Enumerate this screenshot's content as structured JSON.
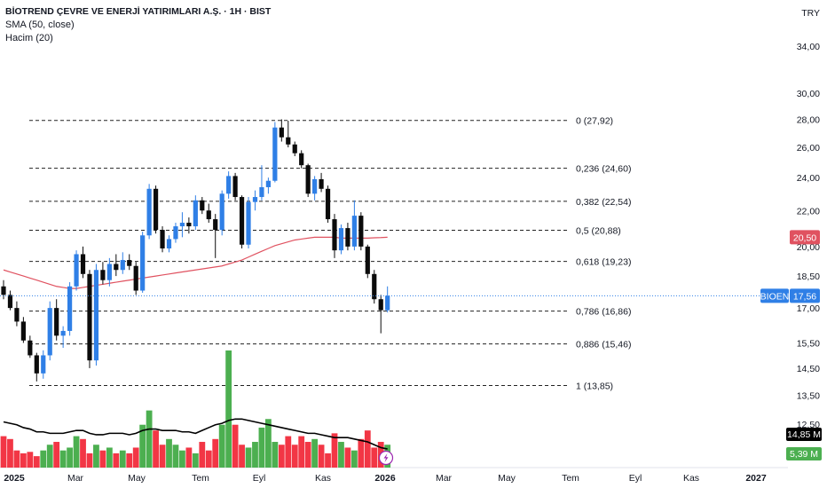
{
  "legend": {
    "title": "BİOTREND ÇEVRE VE ENERJİ YATIRIMLARI A.Ş. · 1H · BIST",
    "sma": "SMA (50, close)",
    "volume": "Hacim (20)"
  },
  "currency": "TRY",
  "colors": {
    "up": "#2f7fe6",
    "down": "#0b0b0b",
    "vol_up": "#4caf50",
    "vol_down": "#f23645",
    "sma": "#e05260",
    "vol_ma": "#000000",
    "last_price": "#2f7fe6"
  },
  "chart_data": {
    "type": "candlestick",
    "y_ticks": [
      "34,00",
      "30,00",
      "28,00",
      "26,00",
      "24,00",
      "22,00",
      "20,00",
      "18,50",
      "17,00",
      "15,50",
      "14,50",
      "13,50",
      "12,50"
    ],
    "x_ticks": [
      "2025",
      "Mar",
      "May",
      "Tem",
      "Eyl",
      "Kas",
      "2026",
      "Mar",
      "May",
      "Tem",
      "Eyl",
      "Kas",
      "2027"
    ],
    "fib_levels": [
      {
        "label": "0 (27,92)",
        "value": 27.92
      },
      {
        "label": "0,236 (24,60)",
        "value": 24.6
      },
      {
        "label": "0,382 (22,54)",
        "value": 22.54
      },
      {
        "label": "0,5 (20,88)",
        "value": 20.88
      },
      {
        "label": "0,618 (19,23)",
        "value": 19.23
      },
      {
        "label": "0,786 (16,86)",
        "value": 16.86
      },
      {
        "label": "0,886 (15,46)",
        "value": 15.46
      },
      {
        "label": "1 (13,85)",
        "value": 13.85
      }
    ],
    "candles": [
      {
        "o": 18.0,
        "h": 18.3,
        "l": 17.4,
        "c": 17.6
      },
      {
        "o": 17.6,
        "h": 17.8,
        "l": 16.9,
        "c": 17.0
      },
      {
        "o": 17.0,
        "h": 17.3,
        "l": 16.2,
        "c": 16.4
      },
      {
        "o": 16.4,
        "h": 16.6,
        "l": 15.5,
        "c": 15.6
      },
      {
        "o": 15.6,
        "h": 15.8,
        "l": 14.9,
        "c": 15.0
      },
      {
        "o": 15.0,
        "h": 15.1,
        "l": 14.0,
        "c": 14.3
      },
      {
        "o": 14.3,
        "h": 15.2,
        "l": 14.1,
        "c": 15.0
      },
      {
        "o": 15.0,
        "h": 17.3,
        "l": 14.8,
        "c": 17.0
      },
      {
        "o": 17.0,
        "h": 17.4,
        "l": 15.6,
        "c": 15.8
      },
      {
        "o": 15.8,
        "h": 16.2,
        "l": 15.3,
        "c": 16.0
      },
      {
        "o": 16.0,
        "h": 18.2,
        "l": 15.8,
        "c": 18.0
      },
      {
        "o": 18.0,
        "h": 19.8,
        "l": 17.8,
        "c": 19.6
      },
      {
        "o": 19.6,
        "h": 20.0,
        "l": 18.4,
        "c": 18.6
      },
      {
        "o": 18.6,
        "h": 18.8,
        "l": 14.5,
        "c": 14.8
      },
      {
        "o": 14.8,
        "h": 19.1,
        "l": 14.6,
        "c": 18.8
      },
      {
        "o": 18.8,
        "h": 19.2,
        "l": 18.1,
        "c": 18.3
      },
      {
        "o": 18.3,
        "h": 19.4,
        "l": 18.0,
        "c": 19.1
      },
      {
        "o": 19.1,
        "h": 19.6,
        "l": 18.5,
        "c": 18.8
      },
      {
        "o": 18.8,
        "h": 19.7,
        "l": 18.6,
        "c": 19.3
      },
      {
        "o": 19.3,
        "h": 19.6,
        "l": 18.8,
        "c": 19.0
      },
      {
        "o": 19.0,
        "h": 19.2,
        "l": 17.6,
        "c": 17.8
      },
      {
        "o": 17.8,
        "h": 20.8,
        "l": 17.7,
        "c": 20.6
      },
      {
        "o": 20.6,
        "h": 23.6,
        "l": 20.4,
        "c": 23.3
      },
      {
        "o": 23.3,
        "h": 23.5,
        "l": 20.7,
        "c": 20.9
      },
      {
        "o": 20.9,
        "h": 21.1,
        "l": 19.7,
        "c": 19.9
      },
      {
        "o": 19.9,
        "h": 20.6,
        "l": 19.7,
        "c": 20.4
      },
      {
        "o": 20.4,
        "h": 21.3,
        "l": 20.2,
        "c": 21.1
      },
      {
        "o": 21.1,
        "h": 21.9,
        "l": 20.5,
        "c": 21.3
      },
      {
        "o": 21.3,
        "h": 21.6,
        "l": 20.7,
        "c": 21.1
      },
      {
        "o": 21.1,
        "h": 22.9,
        "l": 20.9,
        "c": 22.6
      },
      {
        "o": 22.6,
        "h": 22.8,
        "l": 21.8,
        "c": 22.0
      },
      {
        "o": 22.0,
        "h": 22.4,
        "l": 21.3,
        "c": 21.5
      },
      {
        "o": 21.5,
        "h": 21.8,
        "l": 19.4,
        "c": 20.9
      },
      {
        "o": 20.9,
        "h": 23.2,
        "l": 20.6,
        "c": 23.0
      },
      {
        "o": 23.0,
        "h": 24.4,
        "l": 22.7,
        "c": 24.1
      },
      {
        "o": 24.1,
        "h": 24.3,
        "l": 22.6,
        "c": 22.8
      },
      {
        "o": 22.8,
        "h": 22.9,
        "l": 19.9,
        "c": 20.1
      },
      {
        "o": 20.1,
        "h": 22.8,
        "l": 19.9,
        "c": 22.5
      },
      {
        "o": 22.5,
        "h": 23.2,
        "l": 22.0,
        "c": 22.8
      },
      {
        "o": 22.8,
        "h": 24.8,
        "l": 22.6,
        "c": 23.4
      },
      {
        "o": 23.4,
        "h": 24.0,
        "l": 23.0,
        "c": 23.8
      },
      {
        "o": 23.8,
        "h": 27.8,
        "l": 23.7,
        "c": 27.4
      },
      {
        "o": 27.4,
        "h": 28.0,
        "l": 26.4,
        "c": 26.7
      },
      {
        "o": 26.7,
        "h": 27.9,
        "l": 26.0,
        "c": 26.2
      },
      {
        "o": 26.2,
        "h": 26.4,
        "l": 25.4,
        "c": 25.6
      },
      {
        "o": 25.6,
        "h": 25.8,
        "l": 24.6,
        "c": 24.8
      },
      {
        "o": 24.8,
        "h": 24.9,
        "l": 22.8,
        "c": 23.0
      },
      {
        "o": 23.0,
        "h": 24.1,
        "l": 22.6,
        "c": 23.9
      },
      {
        "o": 23.9,
        "h": 24.3,
        "l": 23.1,
        "c": 23.3
      },
      {
        "o": 23.3,
        "h": 23.5,
        "l": 21.3,
        "c": 21.5
      },
      {
        "o": 21.5,
        "h": 21.8,
        "l": 19.4,
        "c": 19.8
      },
      {
        "o": 19.8,
        "h": 21.2,
        "l": 19.6,
        "c": 21.0
      },
      {
        "o": 21.0,
        "h": 21.3,
        "l": 19.8,
        "c": 20.0
      },
      {
        "o": 20.0,
        "h": 22.6,
        "l": 19.8,
        "c": 21.7
      },
      {
        "o": 21.7,
        "h": 21.9,
        "l": 19.8,
        "c": 20.0
      },
      {
        "o": 20.0,
        "h": 20.1,
        "l": 18.4,
        "c": 18.6
      },
      {
        "o": 18.6,
        "h": 18.8,
        "l": 17.2,
        "c": 17.4
      },
      {
        "o": 17.4,
        "h": 17.6,
        "l": 15.9,
        "c": 16.9
      },
      {
        "o": 16.9,
        "h": 18.0,
        "l": 16.8,
        "c": 17.56
      }
    ],
    "sma": [
      18.8,
      18.7,
      18.6,
      18.5,
      18.4,
      18.3,
      18.2,
      18.1,
      18.0,
      17.95,
      17.9,
      17.9,
      17.95,
      18.0,
      18.05,
      18.1,
      18.15,
      18.2,
      18.25,
      18.3,
      18.35,
      18.4,
      18.45,
      18.5,
      18.55,
      18.6,
      18.65,
      18.7,
      18.75,
      18.8,
      18.85,
      18.9,
      18.95,
      19.0,
      19.1,
      19.2,
      19.3,
      19.45,
      19.6,
      19.75,
      19.9,
      20.05,
      20.15,
      20.25,
      20.35,
      20.4,
      20.45,
      20.5,
      20.5,
      20.5,
      20.5,
      20.45,
      20.45,
      20.45,
      20.45,
      20.45,
      20.47,
      20.48,
      20.5
    ],
    "volume": [
      22,
      20,
      12,
      10,
      11,
      8,
      12,
      16,
      18,
      12,
      14,
      22,
      20,
      10,
      16,
      12,
      14,
      10,
      12,
      10,
      14,
      30,
      40,
      26,
      16,
      20,
      16,
      12,
      14,
      10,
      18,
      12,
      20,
      30,
      82,
      30,
      16,
      14,
      18,
      28,
      34,
      18,
      16,
      22,
      16,
      22,
      18,
      20,
      16,
      10,
      24,
      18,
      14,
      12,
      20,
      26,
      14,
      18,
      16
    ],
    "volume_ma": [
      32,
      31,
      30,
      28,
      27,
      25,
      25,
      24,
      24,
      24,
      25,
      26,
      26,
      24,
      23,
      23,
      24,
      24,
      24,
      23,
      24,
      26,
      27,
      27,
      26,
      26,
      26,
      25,
      25,
      24,
      26,
      28,
      30,
      31,
      33,
      34,
      34,
      33,
      32,
      31,
      30,
      29,
      28,
      27,
      26,
      25,
      24,
      24,
      23,
      22,
      21,
      21,
      21,
      20,
      19,
      18,
      16,
      14,
      13
    ],
    "ylim_log": [
      11.6,
      37.5
    ],
    "last_price": {
      "ticker": "BIOEN",
      "label": "17,56",
      "value": 17.56
    },
    "sma_badge": {
      "label": "20,50",
      "value": 20.5
    },
    "vol_ma_badge": "14,85 M",
    "vol_badge": "5,39 M"
  }
}
